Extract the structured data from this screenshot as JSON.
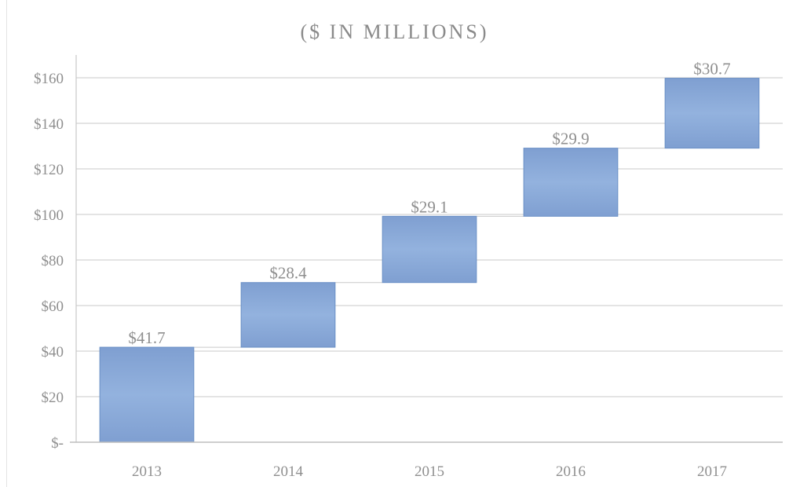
{
  "chart_data": {
    "type": "bar",
    "subtype": "waterfall",
    "title": "($ IN MILLIONS)",
    "xlabel": "",
    "ylabel": "",
    "categories": [
      "2013",
      "2014",
      "2015",
      "2016",
      "2017"
    ],
    "increments": [
      41.7,
      28.4,
      29.1,
      29.9,
      30.7
    ],
    "data_labels": [
      "$41.7",
      "$28.4",
      "$29.1",
      "$29.9",
      "$30.7"
    ],
    "ylim": [
      0,
      170
    ],
    "y_ticks": [
      0,
      20,
      40,
      60,
      80,
      100,
      120,
      140,
      160
    ],
    "y_tick_labels": [
      "$-",
      "$20",
      "$40",
      "$60",
      "$80",
      "$100",
      "$120",
      "$140",
      "$160"
    ],
    "grid": true,
    "legend": "none",
    "bar_color": "#8eaedb",
    "bar_edge_color": "#6a8fc6"
  }
}
